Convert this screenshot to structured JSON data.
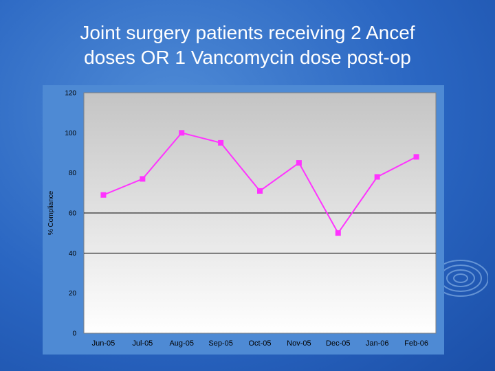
{
  "slide": {
    "title_line1": "Joint surgery patients receiving 2 Ancef",
    "title_line2": "doses OR 1 Vancomycin dose post-op"
  },
  "colors": {
    "background": "#2a66c2",
    "plot_area_top": "#c4c4c4",
    "plot_area_bottom": "#ffffff",
    "series_line": "#ff33ff",
    "gridline": "#000000",
    "text": "#000000"
  },
  "chart_data": {
    "type": "line",
    "title": "",
    "xlabel": "",
    "ylabel": "% Compliance",
    "ylim": [
      0,
      120
    ],
    "yticks": [
      0,
      20,
      40,
      60,
      80,
      100,
      120
    ],
    "categories": [
      "Jun-05",
      "Jul-05",
      "Aug-05",
      "Sep-05",
      "Oct-05",
      "Nov-05",
      "Dec-05",
      "Jan-06",
      "Feb-06"
    ],
    "series": [
      {
        "values": [
          69,
          77,
          100,
          95,
          71,
          85,
          50,
          78,
          88
        ]
      }
    ],
    "gridlines_at": [
      40,
      60
    ],
    "marker": "square",
    "legend": "none"
  }
}
